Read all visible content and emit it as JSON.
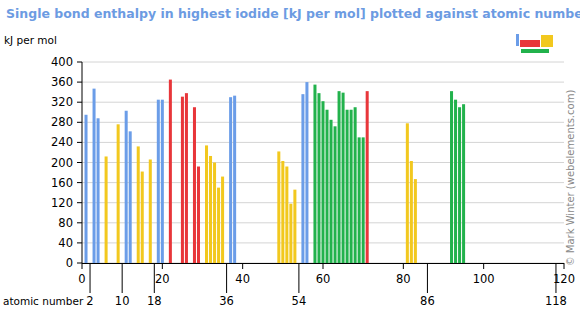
{
  "chart_data": {
    "type": "bar",
    "title": "Single bond enthalpy in highest iodide [kJ per mol] plotted against atomic number",
    "y_label": "kJ per mol",
    "x_label": "atomic number",
    "credit": "© Mark Winter (webelements.com)",
    "x": [
      1,
      3,
      4,
      6,
      9,
      11,
      12,
      14,
      15,
      17,
      19,
      20,
      22,
      25,
      26,
      28,
      29,
      31,
      32,
      33,
      34,
      35,
      37,
      38,
      49,
      50,
      51,
      52,
      53,
      55,
      56,
      58,
      59,
      60,
      61,
      62,
      63,
      64,
      65,
      66,
      67,
      68,
      69,
      70,
      71,
      81,
      82,
      83,
      92,
      93,
      94,
      95
    ],
    "values": [
      295,
      347,
      288,
      212,
      276,
      303,
      262,
      232,
      182,
      206,
      325,
      325,
      365,
      331,
      338,
      310,
      192,
      234,
      213,
      200,
      150,
      172,
      330,
      333,
      222,
      203,
      192,
      118,
      146,
      336,
      360,
      355,
      338,
      322,
      305,
      285,
      272,
      342,
      339,
      305,
      305,
      310,
      250,
      250,
      342,
      278,
      203,
      167,
      342,
      325,
      310,
      316
    ],
    "colors": [
      "#6b9de8",
      "#6b9de8",
      "#6b9de8",
      "#f2c81e",
      "#f2c81e",
      "#6b9de8",
      "#6b9de8",
      "#f2c81e",
      "#f2c81e",
      "#f2c81e",
      "#6b9de8",
      "#6b9de8",
      "#e8363a",
      "#e8363a",
      "#e8363a",
      "#e8363a",
      "#e8363a",
      "#f2c81e",
      "#f2c81e",
      "#f2c81e",
      "#f2c81e",
      "#f2c81e",
      "#6b9de8",
      "#6b9de8",
      "#f2c81e",
      "#f2c81e",
      "#f2c81e",
      "#f2c81e",
      "#f2c81e",
      "#6b9de8",
      "#6b9de8",
      "#22b24c",
      "#22b24c",
      "#22b24c",
      "#22b24c",
      "#22b24c",
      "#22b24c",
      "#22b24c",
      "#22b24c",
      "#22b24c",
      "#22b24c",
      "#22b24c",
      "#22b24c",
      "#22b24c",
      "#e8363a",
      "#f2c81e",
      "#f2c81e",
      "#f2c81e",
      "#22b24c",
      "#22b24c",
      "#22b24c",
      "#22b24c"
    ],
    "xlim": [
      0,
      120
    ],
    "xticks": [
      0,
      20,
      40,
      60,
      80,
      100,
      120
    ],
    "period_ends": [
      2,
      10,
      18,
      36,
      54,
      86,
      118
    ],
    "ylim": [
      0,
      400
    ],
    "yticks": [
      0,
      40,
      80,
      120,
      160,
      200,
      240,
      280,
      320,
      360,
      400
    ],
    "grid": true
  }
}
